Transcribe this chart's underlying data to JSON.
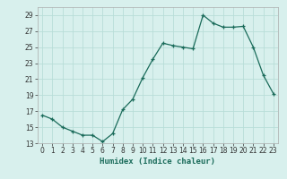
{
  "x": [
    0,
    1,
    2,
    3,
    4,
    5,
    6,
    7,
    8,
    9,
    10,
    11,
    12,
    13,
    14,
    15,
    16,
    17,
    18,
    19,
    20,
    21,
    22,
    23
  ],
  "y": [
    16.5,
    16.0,
    15.0,
    14.5,
    14.0,
    14.0,
    13.2,
    14.2,
    17.2,
    18.5,
    21.2,
    23.5,
    25.5,
    25.2,
    25.0,
    24.8,
    29.0,
    28.0,
    27.5,
    27.5,
    27.6,
    25.0,
    21.5,
    19.2
  ],
  "xlim": [
    -0.5,
    23.5
  ],
  "ylim": [
    13,
    30
  ],
  "yticks": [
    13,
    15,
    17,
    19,
    21,
    23,
    25,
    27,
    29
  ],
  "xticks": [
    0,
    1,
    2,
    3,
    4,
    5,
    6,
    7,
    8,
    9,
    10,
    11,
    12,
    13,
    14,
    15,
    16,
    17,
    18,
    19,
    20,
    21,
    22,
    23
  ],
  "xlabel": "Humidex (Indice chaleur)",
  "line_color": "#1a6b5a",
  "marker": "+",
  "bg_color": "#d8f0ed",
  "grid_color": "#b8ddd8"
}
